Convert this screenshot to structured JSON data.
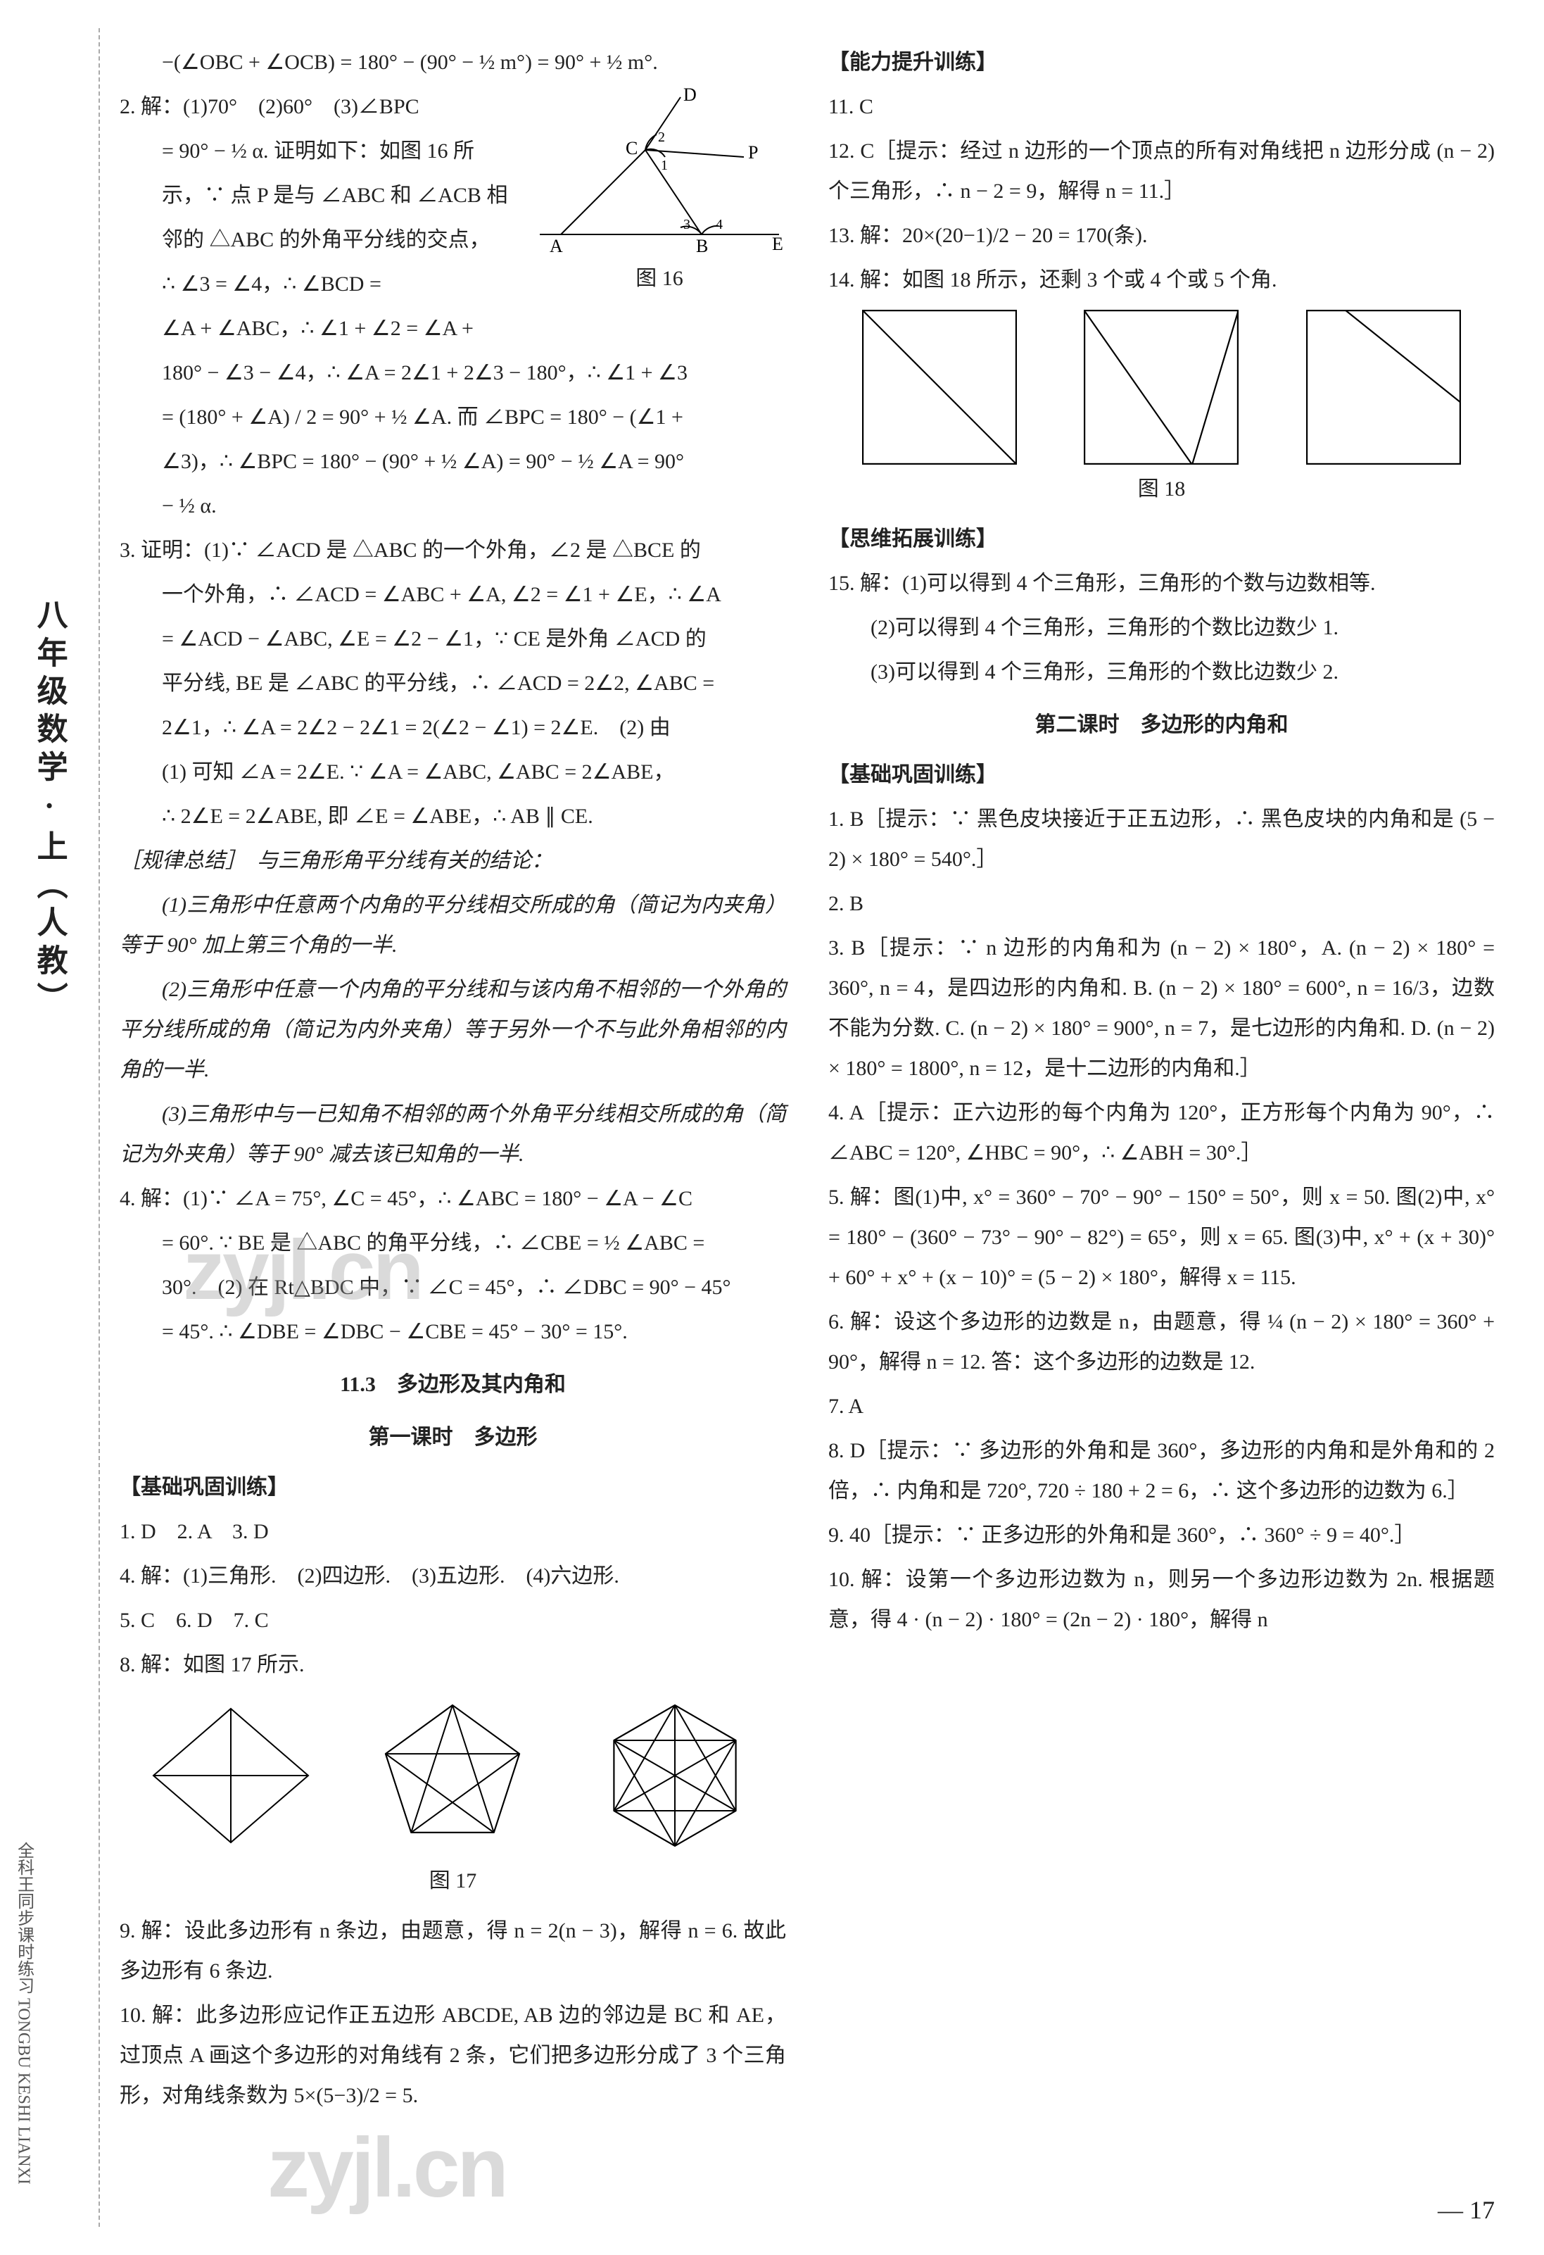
{
  "side": {
    "label": "八年级数学·上（人教）",
    "stamp": "全科王同步课时练习 TONGBU KESHI LIANXI"
  },
  "watermark": "zyjl.cn",
  "page_number": "— 17",
  "left": {
    "l01": "−(∠OBC + ∠OCB) = 180° − (90° − ½ m°) = 90° + ½ m°.",
    "l02": "2. 解：(1)70°　(2)60°　(3)∠BPC",
    "l03": "= 90° − ½ α. 证明如下：如图 16 所",
    "l04": "示，∵ 点 P 是与 ∠ABC 和 ∠ACB 相",
    "l05": "邻的 △ABC 的外角平分线的交点，",
    "l06": "∴ ∠3 = ∠4，∴ ∠BCD =",
    "l07": "∠A + ∠ABC，∴ ∠1 + ∠2 = ∠A +",
    "l08": "180° − ∠3 − ∠4，∴ ∠A = 2∠1 + 2∠3 − 180°，∴ ∠1 + ∠3",
    "l09": "= (180° + ∠A) / 2 = 90° + ½ ∠A. 而 ∠BPC = 180° − (∠1 +",
    "l10": "∠3)，∴ ∠BPC = 180° − (90° + ½ ∠A) = 90° − ½ ∠A = 90°",
    "l11": "− ½ α.",
    "l12": "3. 证明：(1)∵ ∠ACD 是 △ABC 的一个外角，∠2 是 △BCE 的",
    "l13": "一个外角，∴ ∠ACD = ∠ABC + ∠A, ∠2 = ∠1 + ∠E，∴ ∠A",
    "l14": "= ∠ACD − ∠ABC, ∠E = ∠2 − ∠1，∵ CE 是外角 ∠ACD 的",
    "l15": "平分线, BE 是 ∠ABC 的平分线，∴ ∠ACD = 2∠2, ∠ABC =",
    "l16": "2∠1，∴ ∠A = 2∠2 − 2∠1 = 2(∠2 − ∠1) = 2∠E.　(2) 由",
    "l17": "(1) 可知 ∠A = 2∠E. ∵ ∠A = ∠ABC, ∠ABC = 2∠ABE，",
    "l18": "∴ 2∠E = 2∠ABE, 即 ∠E = ∠ABE，∴ AB ∥ CE.",
    "rule_head": "［规律总结］　与三角形角平分线有关的结论：",
    "rule1": "(1)三角形中任意两个内角的平分线相交所成的角（简记为内夹角）等于 90° 加上第三个角的一半.",
    "rule2": "(2)三角形中任意一个内角的平分线和与该内角不相邻的一个外角的平分线所成的角（简记为内外夹角）等于另外一个不与此外角相邻的内角的一半.",
    "rule3": "(3)三角形中与一已知角不相邻的两个外角平分线相交所成的角（简记为外夹角）等于 90° 减去该已知角的一半.",
    "l19": "4. 解：(1)∵ ∠A = 75°, ∠C = 45°，∴ ∠ABC = 180° − ∠A − ∠C",
    "l20": "= 60°. ∵ BE 是 △ABC 的角平分线，∴ ∠CBE = ½ ∠ABC =",
    "l21": "30°.　(2) 在 Rt△BDC 中，∵ ∠C = 45°，∴ ∠DBC = 90° − 45°",
    "l22": "= 45°. ∴ ∠DBE = ∠DBC − ∠CBE = 45° − 30° = 15°.",
    "sec1_title": "11.3　多边形及其内角和",
    "sec1_sub": "第一课时　多边形",
    "basic_head": "【基础巩固训练】",
    "b1": "1. D　2. A　3. D",
    "b4": "4. 解：(1)三角形.　(2)四边形.　(3)五边形.　(4)六边形.",
    "b5": "5. C　6. D　7. C",
    "b8": "8. 解：如图 17 所示.",
    "fig16_cap": "图 16",
    "fig16_labels": {
      "A": "A",
      "B": "B",
      "C": "C",
      "D": "D",
      "E": "E",
      "P": "P",
      "n1": "1",
      "n2": "2",
      "n3": "3",
      "n4": "4"
    },
    "fig17_cap": "图 17"
  },
  "right": {
    "r09": "9. 解：设此多边形有 n 条边，由题意，得 n = 2(n − 3)，解得 n = 6. 故此多边形有 6 条边.",
    "r10": "10. 解：此多边形应记作正五边形 ABCDE, AB 边的邻边是 BC 和 AE，过顶点 A 画这个多边形的对角线有 2 条，它们把多边形分成了 3 个三角形，对角线条数为 5×(5−3)/2 = 5.",
    "cap_head": "【能力提升训练】",
    "c11": "11. C",
    "c12": "12. C［提示：经过 n 边形的一个顶点的所有对角线把 n 边形分成 (n − 2) 个三角形，∴ n − 2 = 9，解得 n = 11.］",
    "c13": "13. 解：20×(20−1)/2 − 20 = 170(条).",
    "c14": "14. 解：如图 18 所示，还剩 3 个或 4 个或 5 个角.",
    "fig18_cap": "图 18",
    "think_head": "【思维拓展训练】",
    "t15_1": "15. 解：(1)可以得到 4 个三角形，三角形的个数与边数相等.",
    "t15_2": "(2)可以得到 4 个三角形，三角形的个数比边数少 1.",
    "t15_3": "(3)可以得到 4 个三角形，三角形的个数比边数少 2.",
    "sec2_title": "第二课时　多边形的内角和",
    "basic2_head": "【基础巩固训练】",
    "p1": "1. B［提示：∵ 黑色皮块接近于正五边形，∴ 黑色皮块的内角和是 (5 − 2) × 180° = 540°.］",
    "p2": "2. B",
    "p3": "3. B［提示：∵ n 边形的内角和为 (n − 2) × 180°，A. (n − 2) × 180° = 360°, n = 4，是四边形的内角和. B. (n − 2) × 180° = 600°, n = 16/3，边数不能为分数. C. (n − 2) × 180° = 900°, n = 7，是七边形的内角和. D. (n − 2) × 180° = 1800°, n = 12，是十二边形的内角和.］",
    "p4": "4. A［提示：正六边形的每个内角为 120°，正方形每个内角为 90°，∴ ∠ABC = 120°, ∠HBC = 90°，∴ ∠ABH = 30°.］",
    "p5": "5. 解：图(1)中, x° = 360° − 70° − 90° − 150° = 50°，则 x = 50. 图(2)中, x° = 180° − (360° − 73° − 90° − 82°) = 65°，则 x = 65. 图(3)中, x° + (x + 30)° + 60° + x° + (x − 10)° = (5 − 2) × 180°，解得 x = 115.",
    "p6": "6. 解：设这个多边形的边数是 n，由题意，得 ¼ (n − 2) × 180° = 360° + 90°，解得 n = 12. 答：这个多边形的边数是 12.",
    "p7": "7. A",
    "p8": "8. D［提示：∵ 多边形的外角和是 360°，多边形的内角和是外角和的 2 倍，∴ 内角和是 720°, 720 ÷ 180 + 2 = 6，∴ 这个多边形的边数为 6.］",
    "p9": "9. 40［提示：∵ 正多边形的外角和是 360°，∴ 360° ÷ 9 = 40°.］",
    "p10": "10. 解：设第一个多边形边数为 n，则另一个多边形边数为 2n. 根据题意，得 4 · (n − 2) · 180° = (2n − 2) · 180°，解得 n"
  },
  "fig18": {
    "box_stroke": "#000000",
    "stroke_w": 2,
    "boxes": [
      {
        "lines": [
          [
            0,
            0,
            200,
            200
          ]
        ]
      },
      {
        "lines": [
          [
            0,
            0,
            140,
            200
          ],
          [
            140,
            200,
            200,
            0
          ]
        ]
      },
      {
        "lines": [
          [
            50,
            0,
            200,
            120
          ]
        ]
      }
    ]
  },
  "fig17": {
    "stroke": "#000000",
    "shapes": [
      "quad",
      "pentagon",
      "hexagon"
    ]
  }
}
